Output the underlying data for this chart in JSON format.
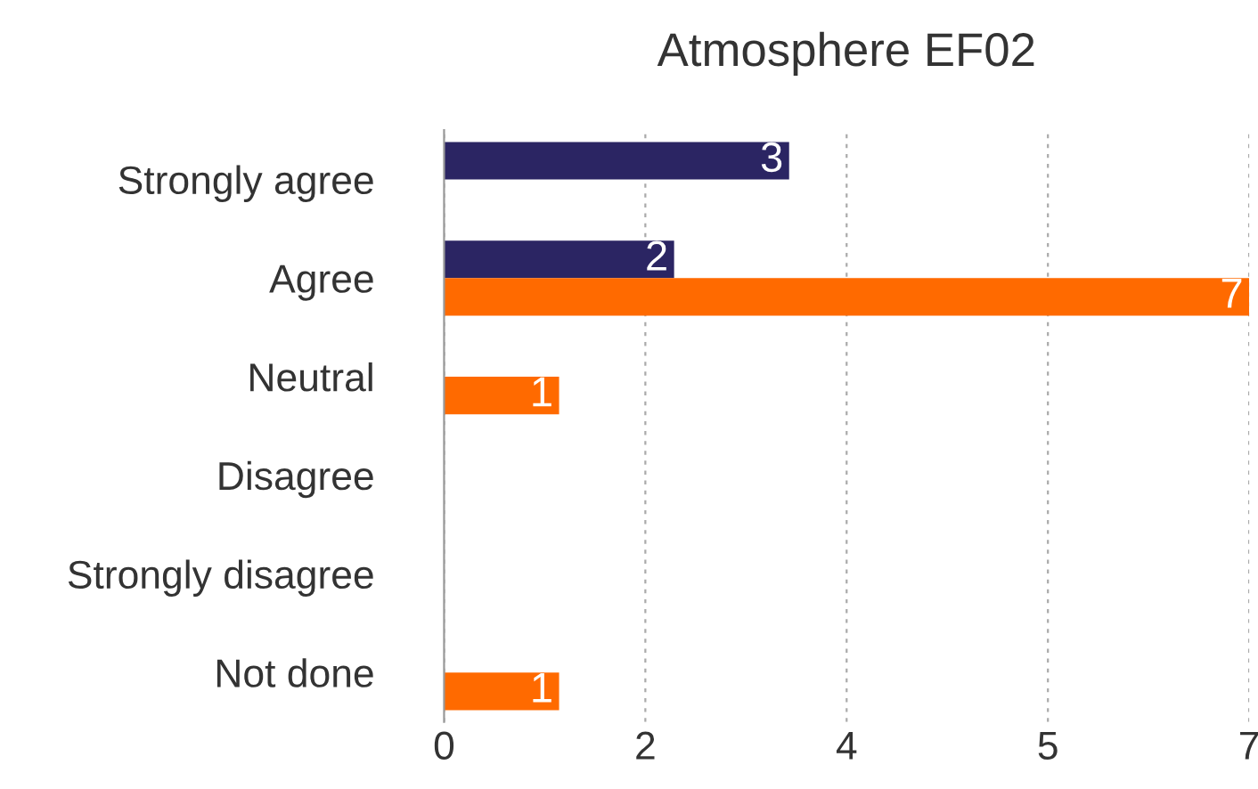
{
  "chart_data": {
    "type": "bar",
    "orientation": "horizontal",
    "title": "Atmosphere EF02",
    "categories": [
      "Strongly agree",
      "Agree",
      "Neutral",
      "Disagree",
      "Strongly disagree",
      "Not done"
    ],
    "series": [
      {
        "color": "#2b2563",
        "values": [
          3,
          2,
          null,
          null,
          null,
          null
        ]
      },
      {
        "color": "#ff6a00",
        "values": [
          null,
          7,
          1,
          null,
          null,
          1
        ]
      }
    ],
    "xlim": [
      0,
      7
    ],
    "xticks": [
      0,
      {
        "value": 1.75,
        "label": "2"
      },
      {
        "value": 3.5,
        "label": "4"
      },
      {
        "value": 5.25,
        "label": "5"
      },
      7
    ],
    "grid": "x",
    "data_labels": true,
    "legend": false
  }
}
